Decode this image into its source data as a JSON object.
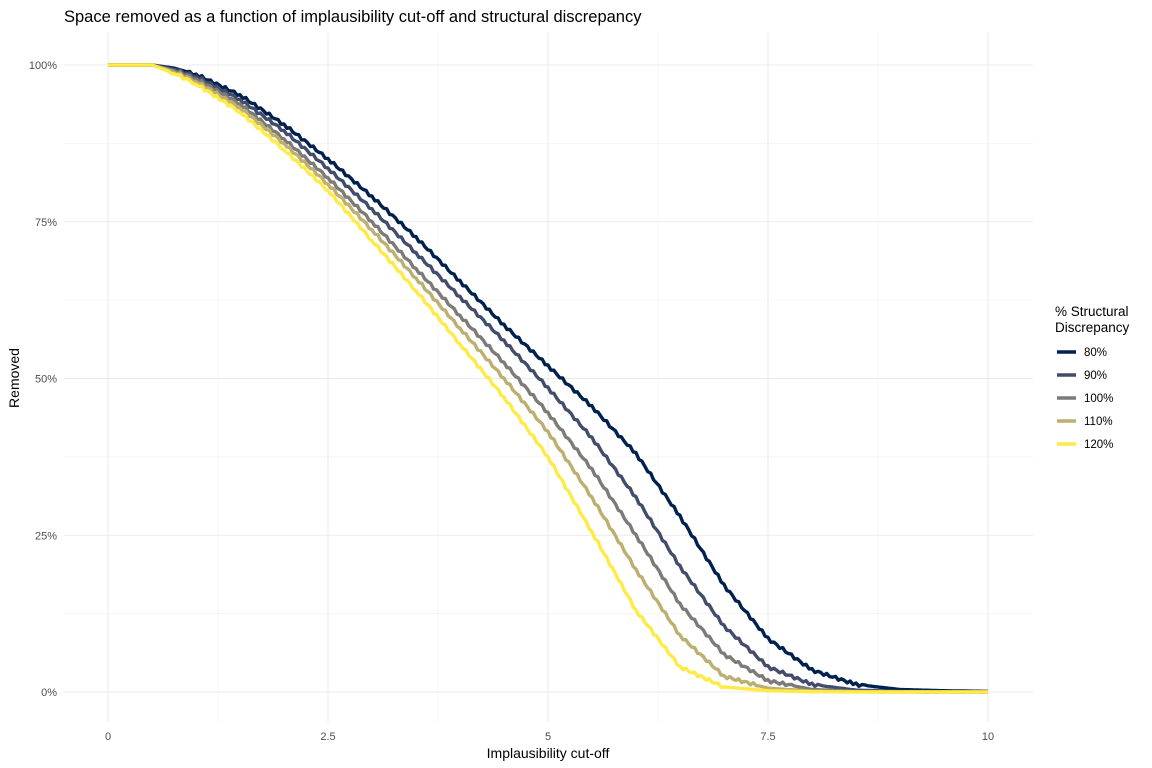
{
  "chart_data": {
    "type": "line",
    "title": "Space removed as a function of implausibility cut-off and structural discrepancy",
    "xlabel": "Implausibility cut-off",
    "ylabel": "Removed",
    "xlim": [
      0,
      10
    ],
    "ylim": [
      0,
      1
    ],
    "x_ticks": [
      0,
      2.5,
      5,
      7.5,
      10
    ],
    "x_tick_labels": [
      "0",
      "2.5",
      "5",
      "7.5",
      "10"
    ],
    "y_ticks": [
      0,
      0.25,
      0.5,
      0.75,
      1
    ],
    "y_tick_labels": [
      "0%",
      "25%",
      "50%",
      "75%",
      "100%"
    ],
    "grid": true,
    "legend": {
      "title_lines": [
        "% Structural",
        "Discrepancy"
      ],
      "position": "right"
    },
    "x": [
      0,
      0.5,
      0.75,
      1,
      1.5,
      2,
      2.5,
      3,
      3.5,
      4,
      4.5,
      5,
      5.5,
      6,
      6.5,
      7,
      7.5,
      8,
      8.5,
      9,
      9.5,
      10
    ],
    "series": [
      {
        "name": "80%",
        "color": "#00204d",
        "values": [
          1,
          1,
          0.995,
          0.985,
          0.952,
          0.905,
          0.85,
          0.79,
          0.725,
          0.655,
          0.585,
          0.52,
          0.455,
          0.38,
          0.28,
          0.17,
          0.085,
          0.035,
          0.012,
          0.004,
          0.002,
          0.001
        ]
      },
      {
        "name": "90%",
        "color": "#414d6b",
        "values": [
          1,
          1,
          0.993,
          0.982,
          0.945,
          0.895,
          0.835,
          0.77,
          0.7,
          0.63,
          0.56,
          0.485,
          0.405,
          0.31,
          0.2,
          0.105,
          0.04,
          0.012,
          0.003,
          0.001,
          0.0005,
          0.0003
        ]
      },
      {
        "name": "100%",
        "color": "#7c7b78",
        "values": [
          1,
          1,
          0.991,
          0.978,
          0.938,
          0.882,
          0.82,
          0.75,
          0.675,
          0.6,
          0.525,
          0.445,
          0.355,
          0.25,
          0.14,
          0.06,
          0.018,
          0.004,
          0.001,
          0.0003,
          0.0001,
          0
        ]
      },
      {
        "name": "110%",
        "color": "#bcaf6f",
        "values": [
          1,
          1,
          0.989,
          0.974,
          0.932,
          0.875,
          0.81,
          0.737,
          0.66,
          0.58,
          0.5,
          0.415,
          0.31,
          0.195,
          0.09,
          0.025,
          0.006,
          0.0015,
          0.0004,
          0.0001,
          0,
          0
        ]
      },
      {
        "name": "120%",
        "color": "#ffea46",
        "values": [
          1,
          1,
          0.987,
          0.97,
          0.925,
          0.865,
          0.8,
          0.72,
          0.64,
          0.555,
          0.47,
          0.375,
          0.255,
          0.13,
          0.04,
          0.008,
          0.002,
          0.0005,
          0.0001,
          0,
          0,
          0
        ]
      }
    ]
  }
}
